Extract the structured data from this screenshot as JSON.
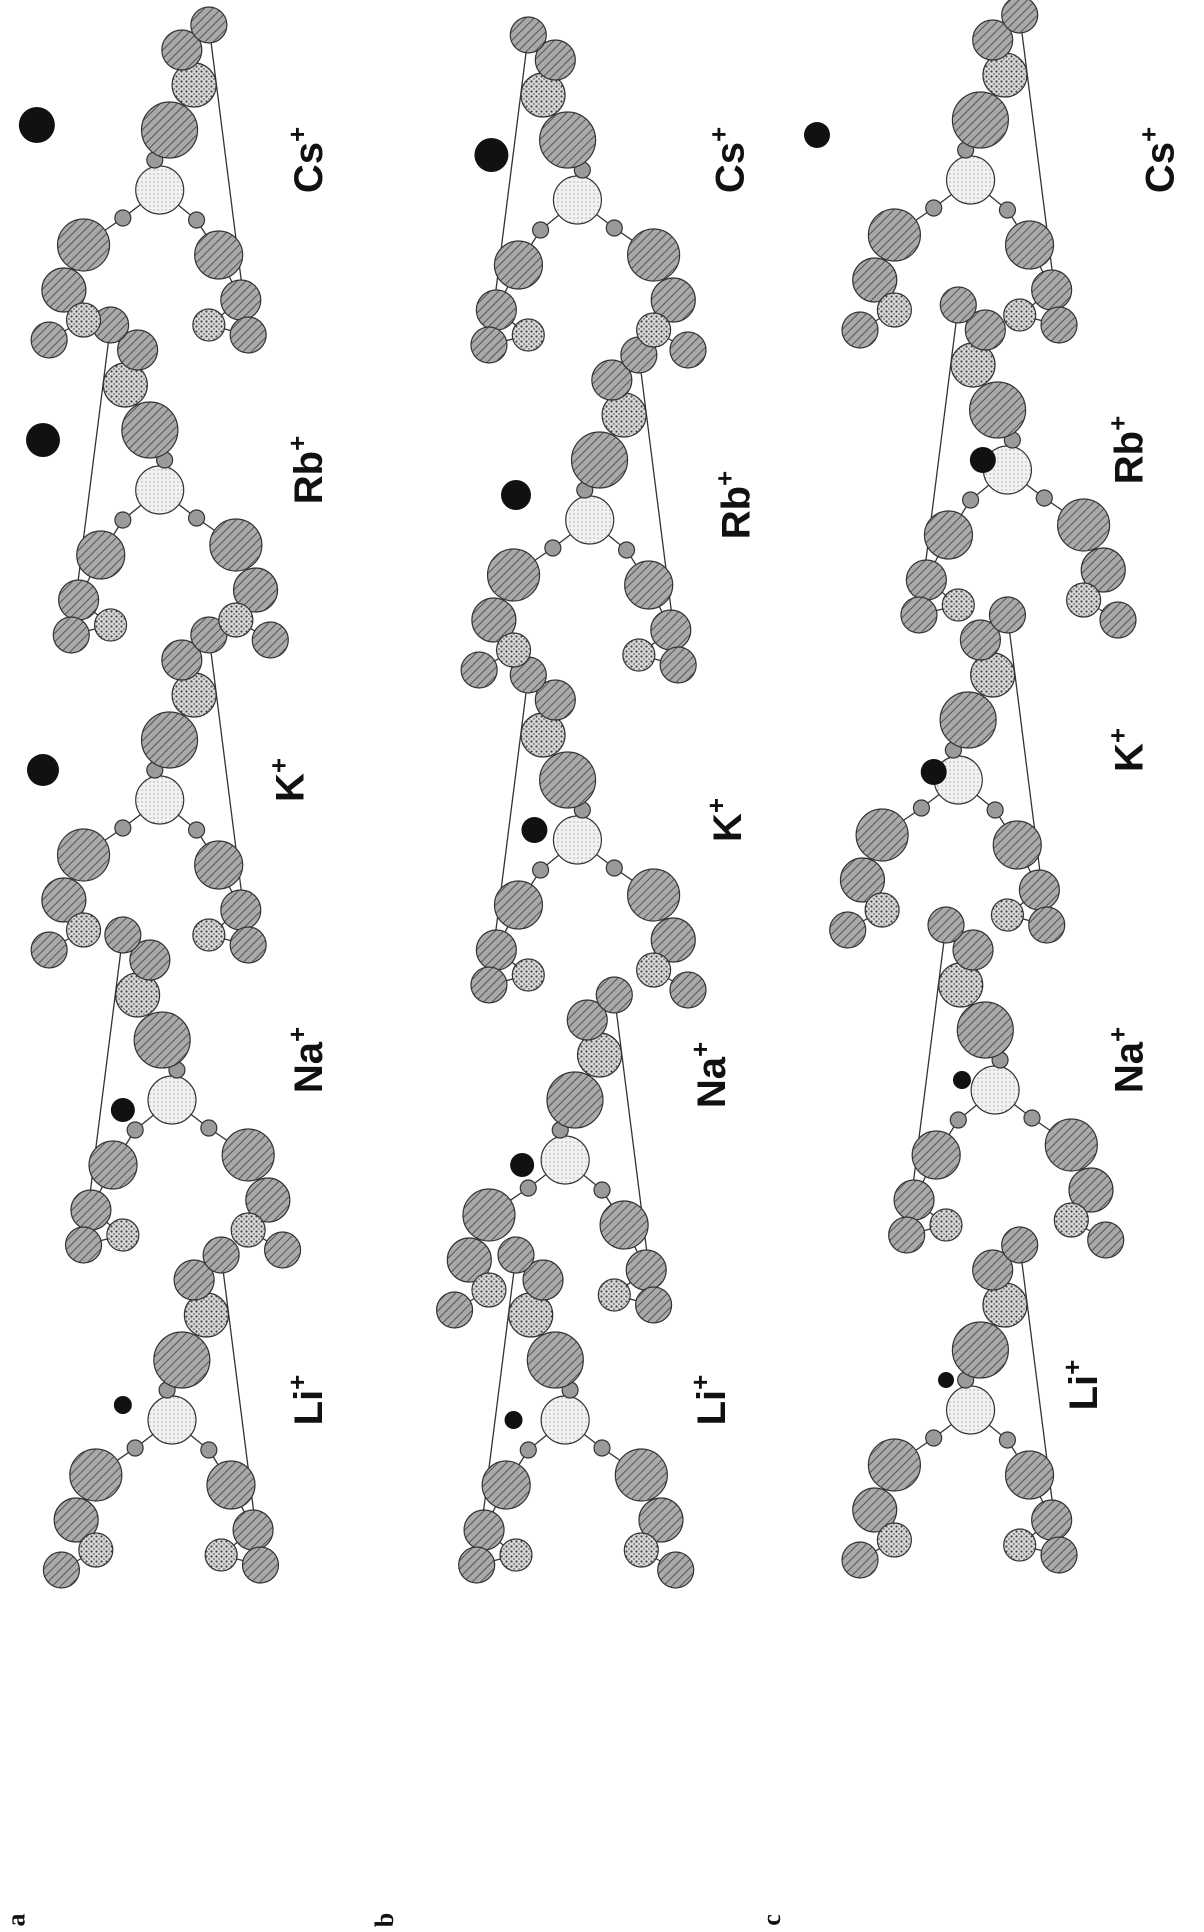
{
  "panels": [
    {
      "label": "a",
      "ions": [
        {
          "symbol": "Li",
          "charge": "+"
        },
        {
          "symbol": "Na",
          "charge": "+"
        },
        {
          "symbol": "K",
          "charge": "+"
        },
        {
          "symbol": "Rb",
          "charge": "+"
        },
        {
          "symbol": "Cs",
          "charge": "+"
        }
      ]
    },
    {
      "label": "b",
      "ions": [
        {
          "symbol": "Li",
          "charge": "+"
        },
        {
          "symbol": "Na",
          "charge": "+"
        },
        {
          "symbol": "K",
          "charge": "+"
        },
        {
          "symbol": "Rb",
          "charge": "+"
        },
        {
          "symbol": "Cs",
          "charge": "+"
        }
      ]
    },
    {
      "label": "c",
      "ions": [
        {
          "symbol": "Li",
          "charge": "+"
        },
        {
          "symbol": "Na",
          "charge": "+"
        },
        {
          "symbol": "K",
          "charge": "+"
        },
        {
          "symbol": "Rb",
          "charge": "+"
        },
        {
          "symbol": "Cs",
          "charge": "+"
        }
      ]
    }
  ]
}
